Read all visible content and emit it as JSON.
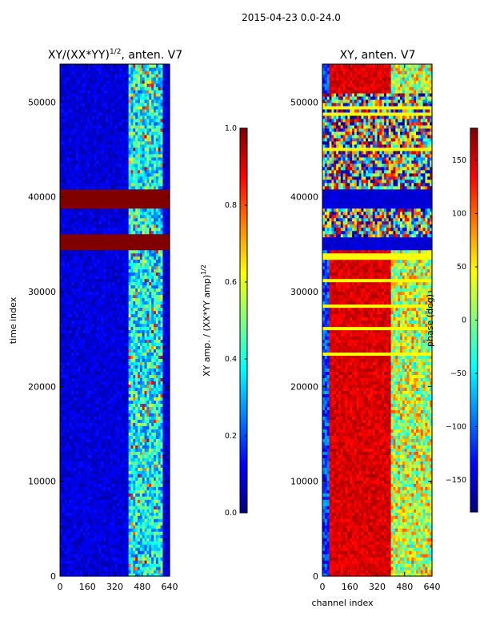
{
  "chart_data": [
    {
      "type": "heatmap",
      "suptitle": "2015-04-23 0.0-24.0",
      "title": "XY/(XX*YY)",
      "title_exponent": "1/2",
      "title_suffix": ", anten. V7",
      "xlabel": "",
      "ylabel": "time index",
      "xlim": [
        0,
        640
      ],
      "ylim": [
        0,
        54000
      ],
      "xticks": [
        0,
        160,
        320,
        480,
        640
      ],
      "yticks": [
        0,
        10000,
        20000,
        30000,
        40000,
        50000
      ],
      "colormap": "jet",
      "saturated_bands": [
        [
          34500,
          36000
        ],
        [
          38800,
          41000
        ]
      ],
      "colorbar": {
        "label": "XY amp. / (XX*YY amp)",
        "label_exponent": "1/2",
        "range": [
          0.0,
          1.0
        ],
        "ticks": [
          "0.0",
          "0.2",
          "0.4",
          "0.6",
          "0.8",
          "1.0"
        ]
      }
    },
    {
      "type": "heatmap",
      "title": "XY, anten. V7",
      "xlabel": "channel index",
      "ylabel": "",
      "xlim": [
        0,
        640
      ],
      "ylim": [
        0,
        54000
      ],
      "xticks": [
        0,
        160,
        320,
        480,
        640
      ],
      "yticks": [
        0,
        10000,
        20000,
        30000,
        40000,
        50000
      ],
      "colormap": "jet",
      "colorbar": {
        "label": "phase (deg)",
        "range": [
          -180,
          180
        ],
        "ticks": [
          "-150",
          "-100",
          "-50",
          "0",
          "50",
          "100",
          "150"
        ]
      }
    }
  ]
}
